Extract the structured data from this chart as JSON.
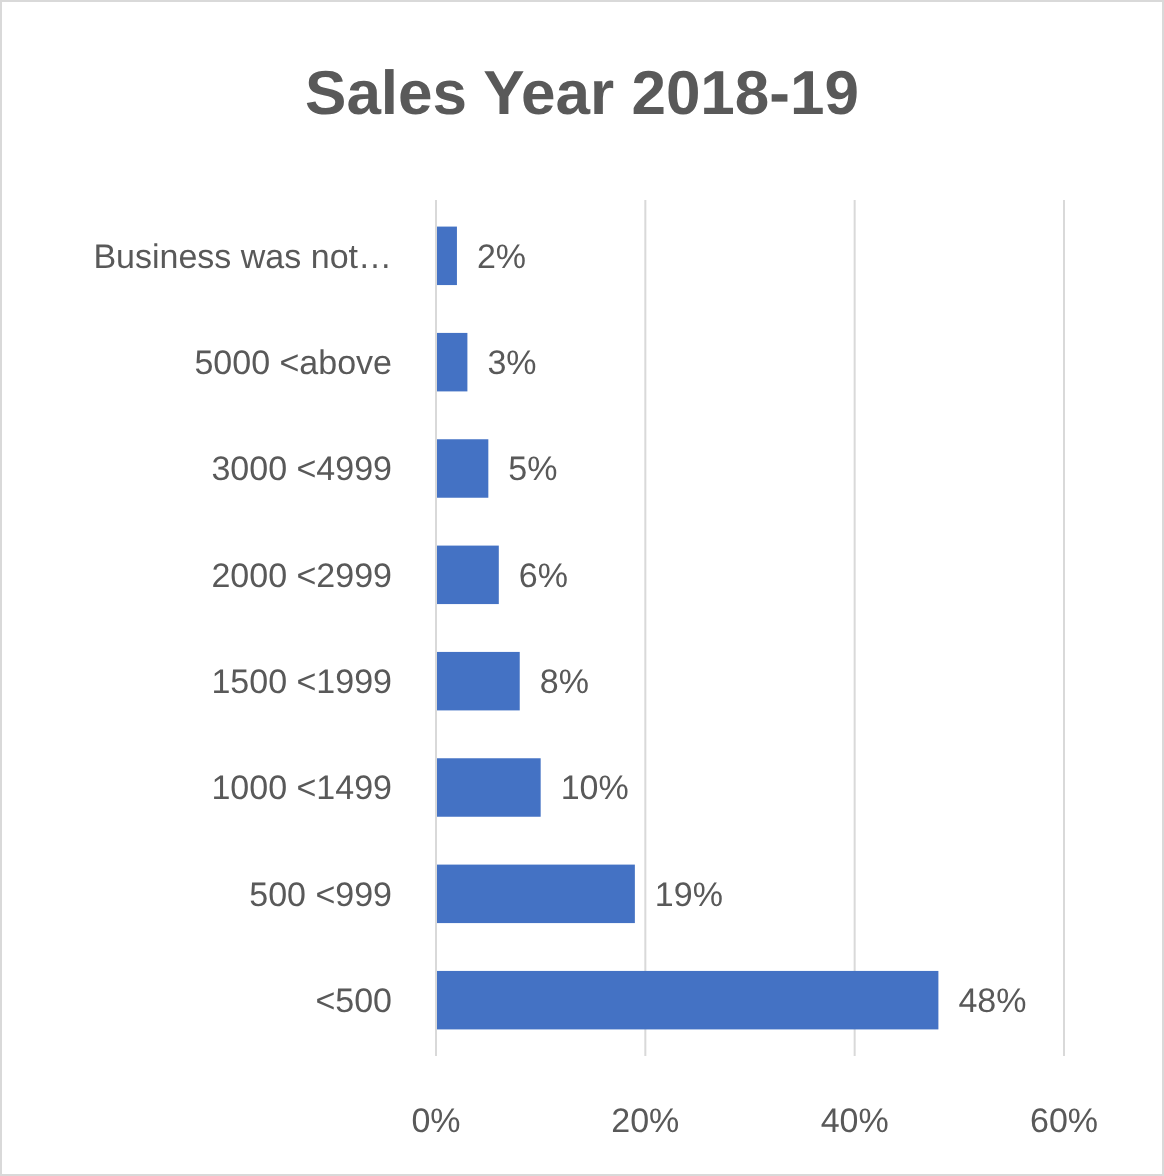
{
  "chart_data": {
    "type": "bar",
    "orientation": "horizontal",
    "title": "Sales Year 2018-19",
    "categories": [
      "Business was not…",
      "5000 <above",
      "3000 <4999",
      "2000 <2999",
      "1500 <1999",
      "1000 <1499",
      "500 <999",
      "<500"
    ],
    "values": [
      2,
      3,
      5,
      6,
      8,
      10,
      19,
      48
    ],
    "value_labels": [
      "2%",
      "3%",
      "5%",
      "6%",
      "8%",
      "10%",
      "19%",
      "48%"
    ],
    "color": "#4472c4",
    "xlim": [
      0,
      60
    ],
    "xticks": [
      {
        "value": 0,
        "label": "0%"
      },
      {
        "value": 20,
        "label": "20%"
      },
      {
        "value": 40,
        "label": "40%"
      },
      {
        "value": 60,
        "label": "60%"
      }
    ],
    "grid": "x"
  }
}
